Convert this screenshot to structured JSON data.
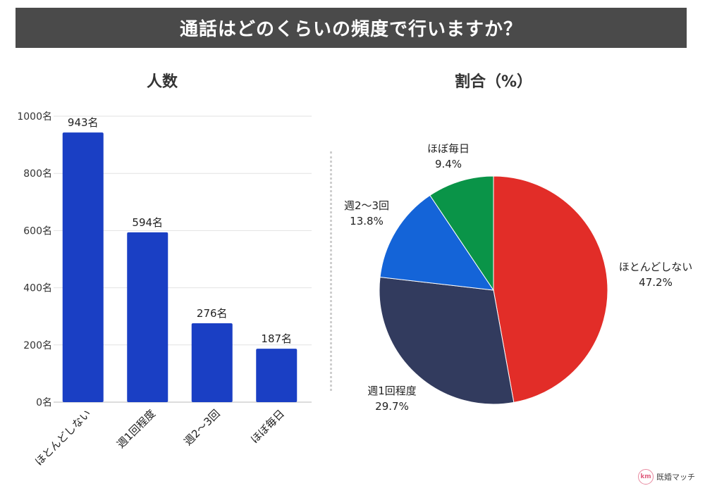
{
  "title": "通話はどのくらいの頻度で行いますか？",
  "chart_data": [
    {
      "type": "bar",
      "title": "人数",
      "categories": [
        "ほとんどしない",
        "週1回程度",
        "週2〜3回",
        "ほぼ毎日"
      ],
      "values": [
        943,
        594,
        276,
        187
      ],
      "value_labels": [
        "943名",
        "594名",
        "276名",
        "187名"
      ],
      "ylim": [
        0,
        1000
      ],
      "yticks": [
        0,
        200,
        400,
        600,
        800,
        1000
      ],
      "ytick_labels": [
        "0名",
        "200名",
        "400名",
        "600名",
        "800名",
        "1000名"
      ],
      "grid": true,
      "color": "#1a3fc4"
    },
    {
      "type": "pie",
      "title": "割合（%）",
      "labels": [
        "ほとんどしない",
        "週1回程度",
        "週2〜3回",
        "ほぼ毎日"
      ],
      "values": [
        47.2,
        29.7,
        13.8,
        9.4
      ],
      "value_labels": [
        "47.2%",
        "29.7%",
        "13.8%",
        "9.4%"
      ],
      "colors": [
        "#e22d28",
        "#323b5e",
        "#1464d8",
        "#0a9448"
      ]
    }
  ],
  "logo": {
    "text": "既婚マッチ",
    "mark": "km"
  }
}
